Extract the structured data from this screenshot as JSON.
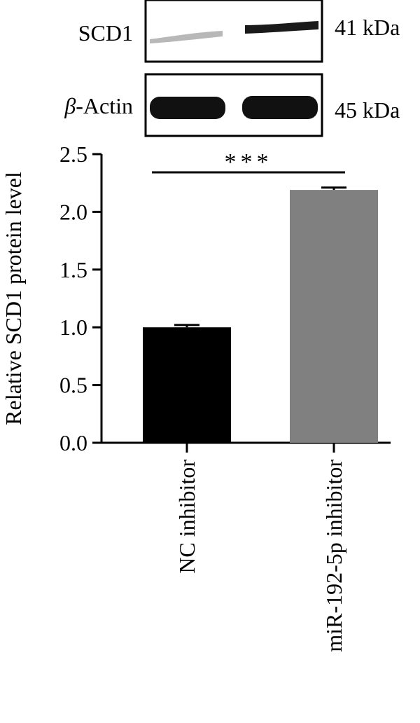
{
  "blot": {
    "rows": [
      {
        "label_symbol": "",
        "label_text": "SCD1",
        "size": "41 kDa"
      },
      {
        "label_symbol": "β",
        "label_text": "-Actin",
        "size": "45 kDa"
      }
    ]
  },
  "chart_data": {
    "type": "bar",
    "categories": [
      "NC inhibitor",
      "miR-192-5p inhibitor"
    ],
    "values": [
      1.0,
      2.19
    ],
    "errors": [
      0.02,
      0.02
    ],
    "colors": [
      "#000000",
      "#808080"
    ],
    "ylabel": "Relative SCD1 protein level",
    "xlabel": "",
    "ylim": [
      0,
      2.5
    ],
    "yticks": [
      0.0,
      0.5,
      1.0,
      1.5,
      2.0,
      2.5
    ],
    "ytick_labels": [
      "0.0",
      "0.5",
      "1.0",
      "1.5",
      "2.0",
      "2.5"
    ],
    "significance": "***"
  }
}
